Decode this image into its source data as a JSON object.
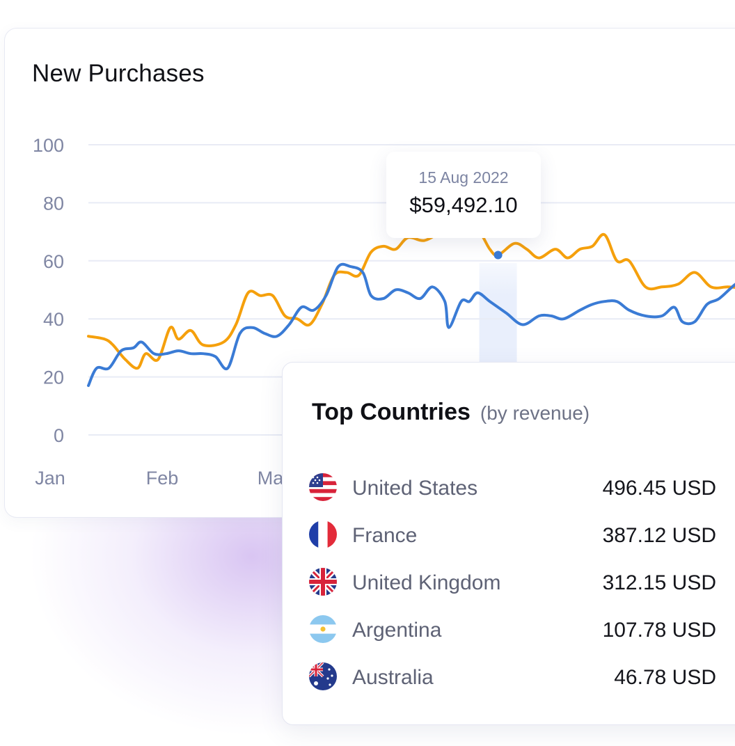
{
  "card": {
    "title": "New Purchases"
  },
  "tooltip": {
    "date": "15 Aug 2022",
    "value": "$59,492.10"
  },
  "chart_data": {
    "type": "line",
    "title": "New Purchases",
    "x_labels": [
      "Jan",
      "Feb",
      "Mar"
    ],
    "ylim": [
      0,
      100
    ],
    "yticks": [
      0,
      20,
      40,
      60,
      80,
      100
    ],
    "grid": true,
    "highlight_x": 0.5,
    "series": [
      {
        "name": "orange",
        "color": "#f5a00c",
        "points": [
          [
            0.0,
            34
          ],
          [
            0.02,
            33
          ],
          [
            0.03,
            31
          ],
          [
            0.045,
            26
          ],
          [
            0.06,
            23
          ],
          [
            0.07,
            28
          ],
          [
            0.085,
            26
          ],
          [
            0.1,
            37
          ],
          [
            0.11,
            33
          ],
          [
            0.125,
            36
          ],
          [
            0.14,
            31
          ],
          [
            0.165,
            32
          ],
          [
            0.18,
            38
          ],
          [
            0.195,
            49
          ],
          [
            0.21,
            48
          ],
          [
            0.225,
            48
          ],
          [
            0.24,
            41
          ],
          [
            0.255,
            40
          ],
          [
            0.27,
            38
          ],
          [
            0.285,
            45
          ],
          [
            0.3,
            55
          ],
          [
            0.315,
            56
          ],
          [
            0.33,
            55
          ],
          [
            0.345,
            63
          ],
          [
            0.36,
            65
          ],
          [
            0.375,
            64
          ],
          [
            0.39,
            68
          ],
          [
            0.41,
            67
          ],
          [
            0.43,
            70
          ],
          [
            0.445,
            72
          ],
          [
            0.46,
            71
          ],
          [
            0.475,
            71
          ],
          [
            0.49,
            64
          ],
          [
            0.5,
            62
          ],
          [
            0.52,
            66
          ],
          [
            0.535,
            64
          ],
          [
            0.55,
            61
          ],
          [
            0.57,
            64
          ],
          [
            0.585,
            61
          ],
          [
            0.6,
            64
          ],
          [
            0.615,
            65
          ],
          [
            0.63,
            69
          ],
          [
            0.645,
            60
          ],
          [
            0.66,
            60
          ],
          [
            0.68,
            51
          ],
          [
            0.7,
            51
          ],
          [
            0.72,
            52
          ],
          [
            0.74,
            56
          ],
          [
            0.76,
            51
          ],
          [
            0.78,
            51
          ],
          [
            0.8,
            51
          ],
          [
            0.82,
            54
          ],
          [
            0.835,
            54
          ],
          [
            0.85,
            51
          ]
        ]
      },
      {
        "name": "blue",
        "color": "#3a7bd5",
        "points": [
          [
            0.0,
            17
          ],
          [
            0.01,
            23
          ],
          [
            0.025,
            23
          ],
          [
            0.04,
            29
          ],
          [
            0.055,
            30
          ],
          [
            0.065,
            32
          ],
          [
            0.08,
            28
          ],
          [
            0.095,
            28
          ],
          [
            0.11,
            29
          ],
          [
            0.125,
            28
          ],
          [
            0.14,
            28
          ],
          [
            0.155,
            27
          ],
          [
            0.17,
            23
          ],
          [
            0.185,
            35
          ],
          [
            0.2,
            37
          ],
          [
            0.215,
            35
          ],
          [
            0.23,
            34
          ],
          [
            0.245,
            38
          ],
          [
            0.26,
            44
          ],
          [
            0.275,
            43
          ],
          [
            0.29,
            48
          ],
          [
            0.305,
            58
          ],
          [
            0.32,
            58
          ],
          [
            0.335,
            56
          ],
          [
            0.345,
            48
          ],
          [
            0.36,
            47
          ],
          [
            0.375,
            50
          ],
          [
            0.39,
            49
          ],
          [
            0.405,
            47
          ],
          [
            0.42,
            51
          ],
          [
            0.435,
            46
          ],
          [
            0.44,
            37
          ],
          [
            0.455,
            46
          ],
          [
            0.465,
            46
          ],
          [
            0.475,
            49
          ],
          [
            0.49,
            46
          ],
          [
            0.51,
            42
          ],
          [
            0.53,
            38
          ],
          [
            0.55,
            41
          ],
          [
            0.565,
            41
          ],
          [
            0.58,
            40
          ],
          [
            0.6,
            43
          ],
          [
            0.615,
            45
          ],
          [
            0.63,
            46
          ],
          [
            0.645,
            46
          ],
          [
            0.66,
            43
          ],
          [
            0.68,
            41
          ],
          [
            0.7,
            41
          ],
          [
            0.715,
            44
          ],
          [
            0.725,
            39
          ],
          [
            0.74,
            39
          ],
          [
            0.755,
            45
          ],
          [
            0.77,
            47
          ],
          [
            0.79,
            52
          ],
          [
            0.805,
            54
          ],
          [
            0.82,
            58
          ],
          [
            0.835,
            64
          ],
          [
            0.85,
            66
          ]
        ]
      }
    ]
  },
  "countries": {
    "title": "Top Countries",
    "subtitle": "(by revenue)",
    "items": [
      {
        "flag": "flag-us-icon",
        "name": "United States",
        "value": "496.45 USD"
      },
      {
        "flag": "flag-fr-icon",
        "name": "France",
        "value": "387.12 USD"
      },
      {
        "flag": "flag-uk-icon",
        "name": "United Kingdom",
        "value": "312.15 USD"
      },
      {
        "flag": "flag-ar-icon",
        "name": "Argentina",
        "value": "107.78 USD"
      },
      {
        "flag": "flag-au-icon",
        "name": "Australia",
        "value": "46.78 USD"
      }
    ]
  }
}
